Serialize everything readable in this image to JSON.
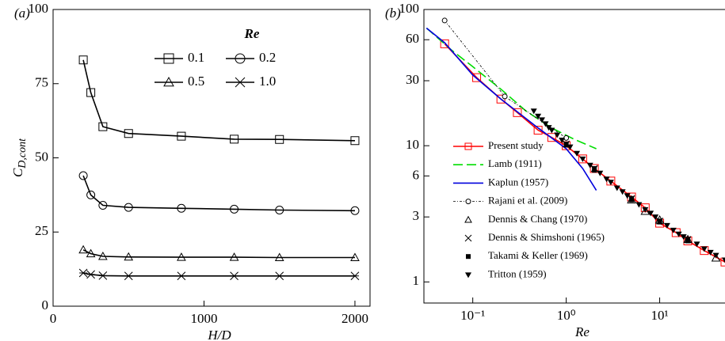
{
  "chart_data": [
    {
      "type": "line",
      "panel_label": "(a)",
      "xlabel": "H/D",
      "ylabel": {
        "main": "C",
        "sub": "D,cont"
      },
      "xlim": [
        0,
        2100
      ],
      "ylim": [
        0,
        100
      ],
      "xticks": [
        0,
        1000,
        2000
      ],
      "yticks": [
        0,
        25,
        50,
        75,
        100
      ],
      "legend_title": "Re",
      "legend_position": "upper-right",
      "legend_columns": 2,
      "x": [
        200,
        250,
        330,
        500,
        850,
        1200,
        1500,
        2000
      ],
      "series": [
        {
          "name": "0.1",
          "color": "#000000",
          "marker": "square",
          "line": "solid",
          "values": [
            83,
            72,
            60.5,
            58.2,
            57.3,
            56.3,
            56.2,
            55.8
          ]
        },
        {
          "name": "0.2",
          "color": "#000000",
          "marker": "circle",
          "line": "solid",
          "values": [
            44,
            37.5,
            34,
            33.3,
            33,
            32.7,
            32.4,
            32.2
          ]
        },
        {
          "name": "0.5",
          "color": "#000000",
          "marker": "triangle",
          "line": "solid",
          "values": [
            19,
            17.7,
            16.8,
            16.6,
            16.5,
            16.5,
            16.4,
            16.4
          ]
        },
        {
          "name": "1.0",
          "color": "#000000",
          "marker": "asterisk",
          "line": "solid",
          "values": [
            11.2,
            10.7,
            10.3,
            10.2,
            10.2,
            10.2,
            10.2,
            10.2
          ]
        }
      ]
    },
    {
      "type": "line",
      "panel_label": "(b)",
      "xlabel": "Re",
      "xlog": true,
      "ylog": true,
      "xlim": [
        0.03,
        50
      ],
      "ylim": [
        0.7,
        100
      ],
      "xticks": [
        {
          "value": 0.1,
          "label": "10⁻¹"
        },
        {
          "value": 1,
          "label": "10⁰"
        },
        {
          "value": 10,
          "label": "10¹"
        }
      ],
      "yticks": [
        1,
        3,
        6,
        10,
        30,
        60,
        100
      ],
      "legend_position": "lower-left",
      "legend_columns": 1,
      "series": [
        {
          "name": "Present study",
          "color": "#ff0000",
          "marker": "square",
          "line": "solid",
          "x": [
            0.05,
            0.11,
            0.2,
            0.3,
            0.5,
            0.7,
            1,
            1.5,
            2,
            3,
            5,
            7,
            10,
            15,
            20,
            30,
            50
          ],
          "values": [
            56,
            31.6,
            22,
            17.5,
            13,
            11.5,
            10,
            8,
            6.8,
            5.5,
            4.2,
            3.5,
            2.7,
            2.3,
            2,
            1.7,
            1.4
          ]
        },
        {
          "name": "Lamb (1911)",
          "color": "#00dd00",
          "marker": "none",
          "line": "dash",
          "x": [
            0.032,
            0.06,
            0.1,
            0.2,
            0.37,
            0.7,
            1.2,
            2.1
          ],
          "values": [
            73,
            50,
            38,
            26,
            18,
            13.5,
            11.2,
            9.5
          ]
        },
        {
          "name": "Kaplun (1957)",
          "color": "#0000dd",
          "marker": "none",
          "line": "solid",
          "x": [
            0.032,
            0.05,
            0.1,
            0.2,
            0.5,
            1,
            1.5,
            2.1
          ],
          "values": [
            73,
            57,
            33,
            22,
            13.5,
            9.5,
            6.8,
            4.7
          ]
        },
        {
          "name": "Rajani et al. (2009)",
          "color": "#000000",
          "marker": "small-circle",
          "line": "dashdot",
          "x": [
            0.05,
            0.22,
            1
          ],
          "values": [
            83,
            23,
            11.4
          ]
        },
        {
          "name": "Dennis & Chang (1970)",
          "color": "#000000",
          "marker": "triangle",
          "line": "none",
          "x": [
            5,
            7,
            10,
            20,
            40
          ],
          "values": [
            4,
            3.3,
            2.85,
            2.05,
            1.5
          ]
        },
        {
          "name": "Dennis & Shimshoni (1965)",
          "color": "#000000",
          "marker": "x",
          "line": "none",
          "x": [
            1,
            2,
            5,
            10,
            20
          ],
          "values": [
            10.3,
            6.8,
            4.1,
            2.8,
            2.05
          ]
        },
        {
          "name": "Takami & Keller (1969)",
          "color": "#000000",
          "marker": "filled-square",
          "line": "none",
          "x": [
            1,
            2,
            5,
            10,
            20
          ],
          "values": [
            10.1,
            6.6,
            4,
            2.75,
            2
          ]
        },
        {
          "name": "Tritton (1959)",
          "color": "#000000",
          "marker": "filled-down-triangle",
          "line": "none",
          "x": [
            0.45,
            0.5,
            0.55,
            0.6,
            0.65,
            0.7,
            0.8,
            0.9,
            1,
            1.1,
            1.3,
            1.5,
            1.8,
            2,
            2.3,
            2.7,
            3,
            3.5,
            4,
            4.5,
            5,
            6,
            7,
            8,
            9,
            10,
            12,
            14,
            16,
            18,
            20,
            25,
            30,
            35,
            40,
            50
          ],
          "values": [
            18,
            16.5,
            15.5,
            14.5,
            13.6,
            13,
            12,
            11,
            10.3,
            9.8,
            8.8,
            8,
            7.2,
            6.8,
            6.3,
            5.7,
            5.4,
            4.9,
            4.6,
            4.3,
            4.1,
            3.7,
            3.4,
            3.2,
            3,
            2.8,
            2.6,
            2.4,
            2.25,
            2.15,
            2.05,
            1.9,
            1.75,
            1.65,
            1.57,
            1.45
          ]
        }
      ]
    }
  ]
}
